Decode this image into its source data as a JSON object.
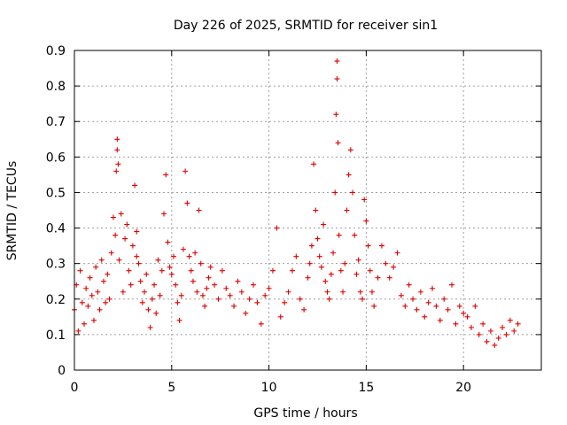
{
  "chart_data": {
    "type": "scatter",
    "title": "Day 226 of 2025, SRMTID for receiver sin1",
    "xlabel": "GPS time / hours",
    "ylabel": "SRMTID / TECUs",
    "xlim": [
      0,
      24.0
    ],
    "ylim": [
      0,
      0.9
    ],
    "xticks": [
      0,
      5,
      10,
      15,
      20
    ],
    "xtick_labels": [
      "0",
      "5",
      "10",
      "15",
      "20"
    ],
    "yticks": [
      0,
      0.1,
      0.2,
      0.3,
      0.4,
      0.5,
      0.6,
      0.7,
      0.8,
      0.9
    ],
    "ytick_labels": [
      "0",
      "0.1",
      "0.2",
      "0.3",
      "0.4",
      "0.5",
      "0.6",
      "0.7",
      "0.8",
      "0.9"
    ],
    "grid": true,
    "marker": "+",
    "color": "#e00000",
    "series": [
      {
        "name": "SRMTID",
        "x": [
          0.0,
          0.1,
          0.2,
          0.3,
          0.4,
          0.5,
          0.6,
          0.7,
          0.8,
          0.9,
          1.0,
          1.1,
          1.2,
          1.3,
          1.4,
          1.5,
          1.6,
          1.7,
          1.8,
          1.9,
          2.0,
          2.1,
          2.15,
          2.2,
          2.2,
          2.25,
          2.3,
          2.4,
          2.5,
          2.6,
          2.7,
          2.8,
          2.9,
          3.0,
          3.1,
          3.2,
          3.2,
          3.3,
          3.4,
          3.5,
          3.6,
          3.7,
          3.8,
          3.9,
          4.0,
          4.1,
          4.2,
          4.3,
          4.4,
          4.5,
          4.6,
          4.7,
          4.8,
          4.9,
          5.0,
          5.1,
          5.2,
          5.3,
          5.4,
          5.5,
          5.6,
          5.7,
          5.8,
          5.9,
          6.0,
          6.1,
          6.2,
          6.3,
          6.4,
          6.5,
          6.6,
          6.7,
          6.8,
          6.9,
          7.0,
          7.2,
          7.4,
          7.6,
          7.8,
          8.0,
          8.2,
          8.4,
          8.6,
          8.8,
          9.0,
          9.2,
          9.4,
          9.6,
          9.8,
          10.0,
          10.2,
          10.4,
          10.6,
          10.8,
          11.0,
          11.2,
          11.4,
          11.6,
          11.8,
          12.0,
          12.1,
          12.2,
          12.3,
          12.4,
          12.5,
          12.6,
          12.7,
          12.8,
          12.9,
          13.0,
          13.1,
          13.2,
          13.3,
          13.4,
          13.45,
          13.5,
          13.5,
          13.55,
          13.6,
          13.7,
          13.8,
          13.9,
          14.0,
          14.1,
          14.2,
          14.3,
          14.4,
          14.5,
          14.6,
          14.7,
          14.8,
          14.9,
          15.0,
          15.1,
          15.2,
          15.3,
          15.4,
          15.6,
          15.8,
          16.0,
          16.2,
          16.4,
          16.6,
          16.8,
          17.0,
          17.2,
          17.4,
          17.6,
          17.8,
          18.0,
          18.2,
          18.4,
          18.6,
          18.8,
          19.0,
          19.2,
          19.4,
          19.6,
          19.8,
          20.0,
          20.2,
          20.4,
          20.6,
          20.8,
          21.0,
          21.2,
          21.4,
          21.6,
          21.8,
          22.0,
          22.2,
          22.4,
          22.6,
          22.8
        ],
        "y": [
          0.17,
          0.24,
          0.11,
          0.28,
          0.19,
          0.13,
          0.23,
          0.18,
          0.26,
          0.21,
          0.14,
          0.29,
          0.22,
          0.17,
          0.31,
          0.25,
          0.19,
          0.27,
          0.2,
          0.33,
          0.43,
          0.38,
          0.56,
          0.65,
          0.62,
          0.58,
          0.31,
          0.44,
          0.22,
          0.37,
          0.41,
          0.28,
          0.24,
          0.35,
          0.52,
          0.39,
          0.32,
          0.3,
          0.25,
          0.19,
          0.22,
          0.27,
          0.17,
          0.12,
          0.2,
          0.24,
          0.16,
          0.31,
          0.21,
          0.28,
          0.44,
          0.55,
          0.36,
          0.29,
          0.27,
          0.32,
          0.24,
          0.19,
          0.14,
          0.21,
          0.34,
          0.56,
          0.47,
          0.32,
          0.28,
          0.25,
          0.33,
          0.22,
          0.45,
          0.3,
          0.21,
          0.18,
          0.23,
          0.26,
          0.29,
          0.24,
          0.2,
          0.28,
          0.23,
          0.21,
          0.18,
          0.25,
          0.22,
          0.16,
          0.2,
          0.24,
          0.19,
          0.13,
          0.21,
          0.23,
          0.28,
          0.4,
          0.15,
          0.19,
          0.22,
          0.28,
          0.32,
          0.2,
          0.17,
          0.26,
          0.3,
          0.35,
          0.58,
          0.45,
          0.37,
          0.32,
          0.29,
          0.41,
          0.25,
          0.22,
          0.2,
          0.27,
          0.33,
          0.5,
          0.72,
          0.82,
          0.87,
          0.64,
          0.38,
          0.28,
          0.22,
          0.3,
          0.45,
          0.55,
          0.62,
          0.5,
          0.38,
          0.27,
          0.31,
          0.22,
          0.2,
          0.48,
          0.42,
          0.35,
          0.28,
          0.22,
          0.18,
          0.26,
          0.35,
          0.3,
          0.26,
          0.29,
          0.33,
          0.21,
          0.18,
          0.24,
          0.2,
          0.17,
          0.22,
          0.15,
          0.19,
          0.23,
          0.18,
          0.14,
          0.2,
          0.17,
          0.24,
          0.13,
          0.18,
          0.16,
          0.15,
          0.12,
          0.18,
          0.1,
          0.13,
          0.08,
          0.11,
          0.07,
          0.09,
          0.12,
          0.1,
          0.14,
          0.11,
          0.13
        ]
      }
    ]
  }
}
